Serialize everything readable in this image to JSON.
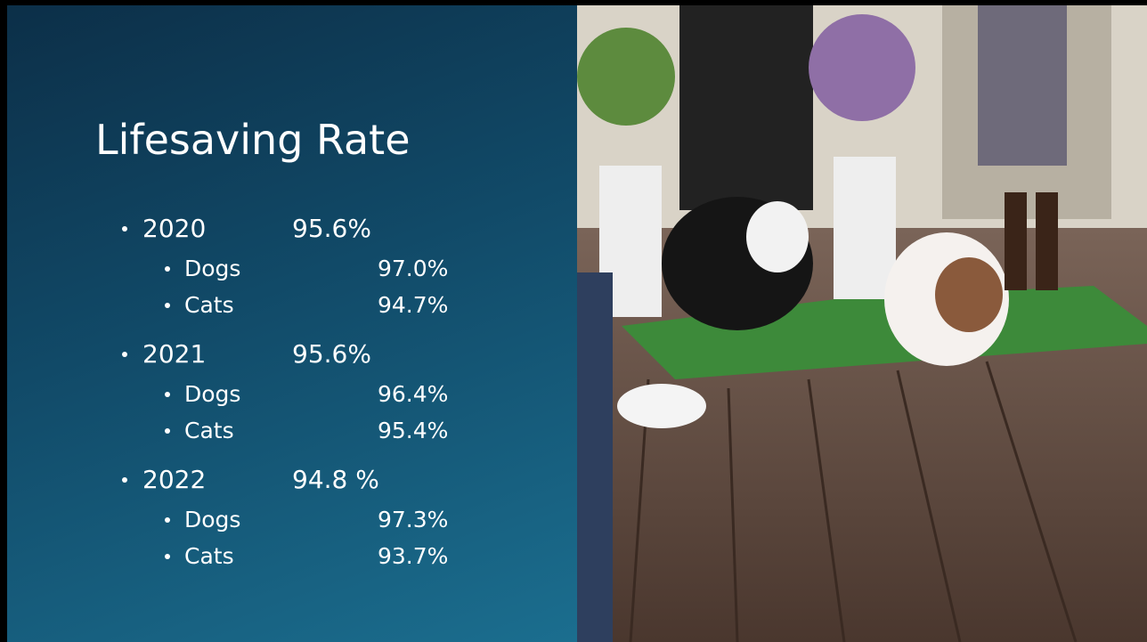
{
  "title": "Lifesaving Rate",
  "items": [
    {
      "label": "2020",
      "value": "95.6%",
      "sub": [
        {
          "label": "Dogs",
          "value": "97.0%"
        },
        {
          "label": "Cats",
          "value": "94.7%"
        }
      ]
    },
    {
      "label": "2021",
      "value": "95.6%",
      "sub": [
        {
          "label": "Dogs",
          "value": "96.4%"
        },
        {
          "label": "Cats",
          "value": "95.4%"
        }
      ]
    },
    {
      "label": "2022",
      "value": "94.8 %",
      "sub": [
        {
          "label": "Dogs",
          "value": "97.3%"
        },
        {
          "label": "Cats",
          "value": "93.7%"
        }
      ]
    }
  ]
}
